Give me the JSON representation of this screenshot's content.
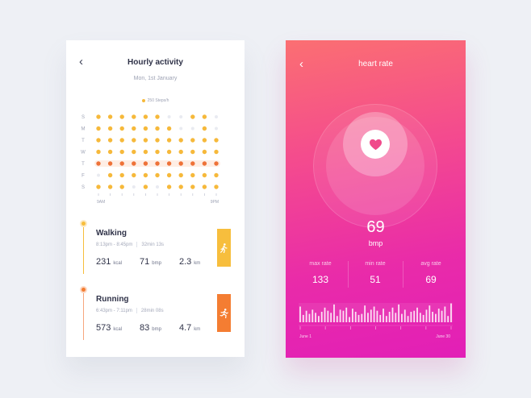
{
  "activity_screen": {
    "title": "Hourly activity",
    "date": "Mon, 1st January",
    "legend": "250 Steps/h",
    "days": [
      "S",
      "M",
      "T",
      "W",
      "T",
      "F",
      "S"
    ],
    "axis_start": "9AM",
    "axis_end": "9PM",
    "colors": {
      "active": "#f6b93b",
      "highlight": "#ee7238",
      "empty": "#e9ebf1"
    },
    "highlight_row": 4,
    "grid": [
      [
        1,
        1,
        1,
        1,
        1,
        1,
        0,
        0,
        1,
        1,
        0
      ],
      [
        1,
        1,
        1,
        1,
        1,
        1,
        1,
        0,
        0,
        1,
        0
      ],
      [
        1,
        1,
        1,
        1,
        1,
        1,
        1,
        1,
        1,
        1,
        1
      ],
      [
        1,
        1,
        1,
        1,
        1,
        1,
        1,
        1,
        1,
        1,
        1
      ],
      [
        1,
        1,
        1,
        1,
        1,
        1,
        1,
        1,
        1,
        1,
        1
      ],
      [
        0,
        1,
        1,
        1,
        1,
        1,
        1,
        1,
        1,
        1,
        1
      ],
      [
        1,
        1,
        1,
        0,
        1,
        0,
        1,
        1,
        1,
        1,
        1
      ]
    ],
    "activities": [
      {
        "name": "Walking",
        "time": "8:13pm - 8:45pm",
        "duration": "32min 13s",
        "kcal": "231",
        "kcal_unit": "kcal",
        "bpm": "71",
        "bpm_unit": "bmp",
        "km": "2.3",
        "km_unit": "km",
        "icon": "walking-icon",
        "color": "#f7be3d"
      },
      {
        "name": "Running",
        "time": "6:43pm - 7:11pm",
        "duration": "28min 08s",
        "kcal": "573",
        "kcal_unit": "kcal",
        "bpm": "83",
        "bpm_unit": "bmp",
        "km": "4.7",
        "km_unit": "km",
        "icon": "running-icon",
        "color": "#f47d32"
      }
    ]
  },
  "heart_screen": {
    "title": "heart rate",
    "bpm": "69",
    "bpm_unit": "bmp",
    "stats": [
      {
        "label": "max rate",
        "value": "133"
      },
      {
        "label": "min rate",
        "value": "51"
      },
      {
        "label": "avg rate",
        "value": "69"
      }
    ],
    "axis_start": "June 1",
    "axis_end": "June 30",
    "icon": "heart-icon",
    "bars": [
      0.75,
      0.35,
      0.55,
      0.4,
      0.6,
      0.45,
      0.3,
      0.5,
      0.7,
      0.55,
      0.45,
      0.85,
      0.3,
      0.6,
      0.55,
      0.7,
      0.25,
      0.65,
      0.5,
      0.35,
      0.4,
      0.8,
      0.45,
      0.6,
      0.75,
      0.55,
      0.35,
      0.65,
      0.3,
      0.5,
      0.7,
      0.45,
      0.85,
      0.4,
      0.6,
      0.3,
      0.5,
      0.55,
      0.7,
      0.45,
      0.35,
      0.6,
      0.8,
      0.5,
      0.4,
      0.65,
      0.55,
      0.75,
      0.3,
      0.9
    ]
  }
}
